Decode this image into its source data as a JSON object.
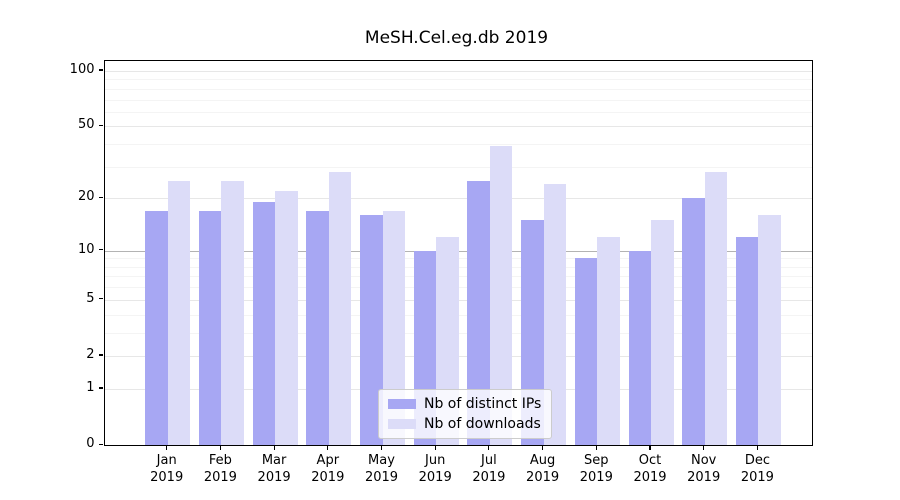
{
  "chart_data": {
    "type": "bar",
    "title": "MeSH.Cel.eg.db 2019",
    "categories": [
      "Jan",
      "Feb",
      "Mar",
      "Apr",
      "May",
      "Jun",
      "Jul",
      "Aug",
      "Sep",
      "Oct",
      "Nov",
      "Dec"
    ],
    "year": "2019",
    "series": [
      {
        "name": "Nb of distinct IPs",
        "color": "#a7a7f3",
        "values": [
          17,
          17,
          19,
          17,
          16,
          10,
          25,
          15,
          9,
          10,
          20,
          12
        ]
      },
      {
        "name": "Nb of downloads",
        "color": "#dcdcf8",
        "values": [
          25,
          25,
          22,
          28,
          17,
          12,
          39,
          24,
          12,
          15,
          28,
          16
        ]
      }
    ],
    "y_axis": {
      "scale": "log1p",
      "ticks": [
        0,
        1,
        2,
        5,
        10,
        20,
        50,
        100
      ],
      "minor_ticks": [
        3,
        4,
        6,
        7,
        8,
        9,
        30,
        40,
        60,
        70,
        80,
        90
      ],
      "reference_line": 10,
      "max_value": 113
    },
    "xlabel": "",
    "ylabel": "",
    "grid": "on",
    "legend_position": "bottom-center"
  },
  "colors": {
    "background": "#ffffff",
    "major_grid": "#e7e7e7",
    "minor_grid": "#f4f4f4",
    "reference_grid": "#b3b3b3",
    "axis": "#000000",
    "legend_border": "#cccccc"
  }
}
